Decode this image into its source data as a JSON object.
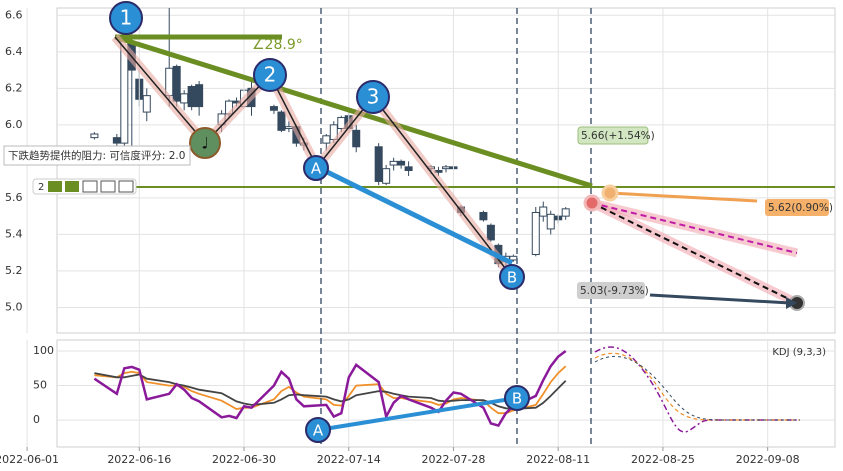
{
  "chart_data": [
    {
      "type": "candlestick",
      "x": [
        "2022-06-10",
        "2022-06-13",
        "2022-06-14",
        "2022-06-15",
        "2022-06-16",
        "2022-06-17",
        "2022-06-20",
        "2022-06-21",
        "2022-06-22",
        "2022-06-23",
        "2022-06-24",
        "2022-06-27",
        "2022-06-28",
        "2022-06-29",
        "2022-06-30",
        "2022-07-01",
        "2022-07-04",
        "2022-07-05",
        "2022-07-06",
        "2022-07-07",
        "2022-07-08",
        "2022-07-11",
        "2022-07-12",
        "2022-07-13",
        "2022-07-14",
        "2022-07-15",
        "2022-07-18",
        "2022-07-19",
        "2022-07-20",
        "2022-07-21",
        "2022-07-22",
        "2022-07-25",
        "2022-07-26",
        "2022-07-27",
        "2022-07-28",
        "2022-07-29",
        "2022-08-01",
        "2022-08-02",
        "2022-08-03",
        "2022-08-04",
        "2022-08-05",
        "2022-08-08",
        "2022-08-09",
        "2022-08-10",
        "2022-08-11",
        "2022-08-12"
      ],
      "open": [
        5.93,
        5.93,
        5.9,
        6.45,
        6.25,
        6.07,
        6.16,
        6.32,
        6.12,
        6.21,
        6.22,
        6.0,
        6.06,
        6.13,
        6.1,
        6.2,
        6.1,
        6.07,
        5.98,
        5.99,
        5.89,
        5.9,
        5.92,
        5.98,
        6.05,
        5.97,
        5.88,
        5.68,
        5.78,
        5.8,
        5.77,
        5.76,
        5.75,
        5.76,
        5.77,
        5.55,
        5.52,
        5.45,
        5.34,
        5.25,
        5.26,
        5.29,
        5.5,
        5.43,
        5.5,
        5.5
      ],
      "high": [
        5.96,
        5.95,
        6.5,
        6.5,
        6.3,
        6.2,
        6.64,
        6.33,
        6.19,
        6.22,
        6.24,
        6.08,
        6.14,
        6.15,
        6.22,
        6.25,
        6.11,
        6.08,
        6.02,
        6.0,
        5.93,
        5.95,
        6.02,
        6.05,
        6.08,
        6.0,
        5.9,
        5.78,
        5.82,
        5.81,
        5.8,
        5.78,
        5.77,
        5.78,
        5.78,
        5.56,
        5.53,
        5.46,
        5.35,
        5.3,
        5.29,
        5.55,
        5.58,
        5.53,
        5.51,
        5.55
      ],
      "low": [
        5.92,
        5.88,
        5.85,
        5.86,
        6.1,
        6.02,
        6.1,
        6.1,
        6.08,
        6.08,
        6.05,
        5.96,
        6.04,
        6.1,
        6.08,
        6.05,
        6.06,
        5.96,
        5.96,
        5.88,
        5.86,
        5.86,
        5.9,
        5.96,
        5.96,
        5.85,
        5.67,
        5.67,
        5.75,
        5.76,
        5.72,
        5.73,
        5.72,
        5.74,
        5.75,
        5.5,
        5.47,
        5.36,
        5.22,
        5.23,
        5.25,
        5.28,
        5.47,
        5.4,
        5.46,
        5.48
      ],
      "close": [
        5.95,
        5.9,
        6.48,
        6.3,
        6.14,
        6.16,
        6.31,
        6.13,
        6.17,
        6.1,
        6.1,
        6.06,
        6.13,
        6.12,
        6.19,
        6.1,
        6.08,
        5.97,
        5.99,
        5.9,
        5.9,
        5.94,
        6.0,
        6.04,
        5.98,
        5.88,
        5.69,
        5.76,
        5.8,
        5.78,
        5.75,
        5.77,
        5.74,
        5.77,
        5.76,
        5.52,
        5.48,
        5.37,
        5.24,
        5.28,
        5.28,
        5.52,
        5.55,
        5.51,
        5.48,
        5.54
      ],
      "up_color": "#ffffff",
      "down_color": "#34495e",
      "edge_color": "#34495e",
      "xlim": [
        "2022-06-05",
        "2022-09-17"
      ],
      "ylim": [
        4.86,
        6.64
      ],
      "yticks": [
        {
          "value": 5,
          "label": "5.0"
        },
        5.2,
        5.4,
        5.6,
        {
          "value": 6,
          "label": "6.0"
        },
        6.2,
        6.4,
        6.6
      ],
      "grid": true,
      "annotations": {
        "wave_labels": [
          "1",
          "2",
          "3",
          "A",
          "B"
        ],
        "angle": "∠28.9°",
        "targets": [
          "5.66(+1.54%)",
          "5.62(0.90%)",
          "5.03(-9.73%)"
        ],
        "tooltip": "下跌趋势提供的阻力: 可信度评分: 2.0",
        "toolbar": "2"
      }
    },
    {
      "type": "line",
      "title": "KDJ (9,3,3)",
      "x": [
        "2022-06-10",
        "2022-06-13",
        "2022-06-14",
        "2022-06-15",
        "2022-06-16",
        "2022-06-17",
        "2022-06-20",
        "2022-06-21",
        "2022-06-22",
        "2022-06-23",
        "2022-06-24",
        "2022-06-27",
        "2022-06-28",
        "2022-06-29",
        "2022-06-30",
        "2022-07-01",
        "2022-07-04",
        "2022-07-05",
        "2022-07-06",
        "2022-07-07",
        "2022-07-08",
        "2022-07-11",
        "2022-07-12",
        "2022-07-13",
        "2022-07-14",
        "2022-07-15",
        "2022-07-18",
        "2022-07-19",
        "2022-07-20",
        "2022-07-21",
        "2022-07-22",
        "2022-07-25",
        "2022-07-26",
        "2022-07-27",
        "2022-07-28",
        "2022-07-29",
        "2022-08-01",
        "2022-08-02",
        "2022-08-03",
        "2022-08-04",
        "2022-08-05",
        "2022-08-08",
        "2022-08-09",
        "2022-08-10",
        "2022-08-11",
        "2022-08-12"
      ],
      "series": [
        {
          "name": "K",
          "color": "#f0902a",
          "values": [
            65,
            62,
            68,
            70,
            68,
            55,
            50,
            50,
            48,
            42,
            38,
            28,
            22,
            16,
            18,
            18,
            30,
            42,
            48,
            40,
            34,
            30,
            22,
            21,
            35,
            50,
            52,
            38,
            32,
            32,
            30,
            26,
            22,
            24,
            30,
            32,
            28,
            18,
            10,
            10,
            14,
            22,
            38,
            55,
            68,
            78
          ]
        },
        {
          "name": "D",
          "color": "#444444",
          "values": [
            68,
            62,
            62,
            64,
            66,
            60,
            55,
            52,
            50,
            47,
            44,
            39,
            33,
            27,
            24,
            22,
            25,
            30,
            36,
            37,
            36,
            34,
            30,
            27,
            30,
            36,
            42,
            41,
            38,
            36,
            34,
            32,
            28,
            27,
            28,
            29,
            29,
            25,
            20,
            17,
            16,
            18,
            25,
            35,
            46,
            57
          ]
        },
        {
          "name": "J",
          "color": "#8b1a9b",
          "values": [
            60,
            38,
            75,
            77,
            73,
            30,
            38,
            52,
            44,
            32,
            27,
            4,
            6,
            3,
            20,
            18,
            50,
            70,
            60,
            30,
            20,
            22,
            5,
            10,
            62,
            80,
            55,
            5,
            25,
            35,
            30,
            18,
            12,
            28,
            40,
            38,
            18,
            -5,
            -8,
            10,
            20,
            35,
            58,
            78,
            92,
            100
          ]
        }
      ],
      "xlim": [
        "2022-06-05",
        "2022-09-17"
      ],
      "xticks": [
        "2022-06-01",
        "2022-06-16",
        "2022-06-30",
        "2022-07-14",
        "2022-07-28",
        "2022-08-11",
        "2022-08-25",
        "2022-09-08"
      ],
      "ylim": [
        -39,
        116
      ],
      "yticks": [
        0,
        50,
        100
      ],
      "grid": true
    }
  ]
}
